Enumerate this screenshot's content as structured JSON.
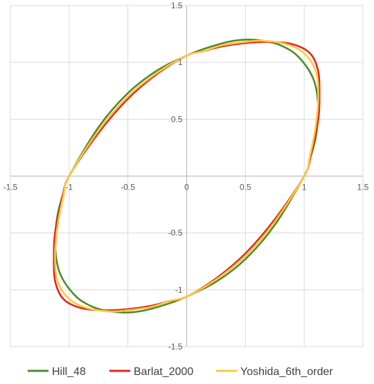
{
  "chart_data": {
    "type": "line",
    "title": "",
    "xlabel": "",
    "ylabel": "",
    "xlim": [
      -1.5,
      1.5
    ],
    "ylim": [
      -1.5,
      1.5
    ],
    "x_ticks": [
      -1.5,
      -1,
      -0.5,
      0,
      0.5,
      1,
      1.5
    ],
    "y_ticks": [
      -1.5,
      -1,
      -0.5,
      0,
      0.5,
      1,
      1.5
    ],
    "x_tick_labels": [
      "-1.5",
      "-1",
      "-0.5",
      "0",
      "0.5",
      "1",
      "1.5"
    ],
    "y_tick_labels": [
      "-1.5",
      "-1",
      "-0.5",
      "0.5",
      "1",
      "1.5"
    ],
    "y_tick_label_values": [
      -1.5,
      -1,
      -0.5,
      0.5,
      1,
      1.5
    ],
    "grid": true,
    "axes_through_origin": true,
    "legend_position": "bottom",
    "series": [
      {
        "name": "Hill_48",
        "color": "#4f8a2b",
        "points": [
          [
            1.0,
            0.0
          ],
          [
            1.05,
            0.15
          ],
          [
            1.1,
            0.35
          ],
          [
            1.12,
            0.6
          ],
          [
            1.08,
            0.85
          ],
          [
            0.95,
            1.05
          ],
          [
            0.8,
            1.15
          ],
          [
            0.65,
            1.19
          ],
          [
            0.5,
            1.2
          ],
          [
            0.35,
            1.18
          ],
          [
            0.15,
            1.12
          ],
          [
            0.0,
            1.06
          ],
          [
            -0.25,
            0.93
          ],
          [
            -0.5,
            0.73
          ],
          [
            -0.75,
            0.43
          ],
          [
            -1.0,
            0.0
          ],
          [
            -1.05,
            -0.15
          ],
          [
            -1.1,
            -0.35
          ],
          [
            -1.12,
            -0.6
          ],
          [
            -1.08,
            -0.85
          ],
          [
            -0.95,
            -1.05
          ],
          [
            -0.8,
            -1.15
          ],
          [
            -0.65,
            -1.19
          ],
          [
            -0.5,
            -1.2
          ],
          [
            -0.35,
            -1.18
          ],
          [
            -0.15,
            -1.12
          ],
          [
            0.0,
            -1.06
          ],
          [
            0.25,
            -0.93
          ],
          [
            0.5,
            -0.73
          ],
          [
            0.75,
            -0.43
          ],
          [
            1.0,
            0.0
          ]
        ]
      },
      {
        "name": "Barlat_2000",
        "color": "#e8231c",
        "points": [
          [
            1.0,
            0.0
          ],
          [
            1.06,
            0.2
          ],
          [
            1.12,
            0.5
          ],
          [
            1.13,
            0.7
          ],
          [
            1.12,
            0.92
          ],
          [
            1.05,
            1.08
          ],
          [
            0.9,
            1.16
          ],
          [
            0.7,
            1.18
          ],
          [
            0.5,
            1.17
          ],
          [
            0.3,
            1.14
          ],
          [
            0.15,
            1.1
          ],
          [
            0.0,
            1.06
          ],
          [
            -0.25,
            0.9
          ],
          [
            -0.5,
            0.68
          ],
          [
            -0.75,
            0.38
          ],
          [
            -1.0,
            0.0
          ],
          [
            -1.06,
            -0.2
          ],
          [
            -1.12,
            -0.5
          ],
          [
            -1.13,
            -0.7
          ],
          [
            -1.12,
            -0.92
          ],
          [
            -1.05,
            -1.08
          ],
          [
            -0.9,
            -1.16
          ],
          [
            -0.7,
            -1.18
          ],
          [
            -0.5,
            -1.17
          ],
          [
            -0.3,
            -1.14
          ],
          [
            -0.15,
            -1.1
          ],
          [
            0.0,
            -1.06
          ],
          [
            0.25,
            -0.9
          ],
          [
            0.5,
            -0.68
          ],
          [
            0.75,
            -0.38
          ],
          [
            1.0,
            0.0
          ]
        ]
      },
      {
        "name": "Yoshida_6th_order",
        "color": "#ffc83d",
        "points": [
          [
            1.0,
            0.0
          ],
          [
            1.05,
            0.18
          ],
          [
            1.1,
            0.45
          ],
          [
            1.12,
            0.7
          ],
          [
            1.1,
            0.92
          ],
          [
            1.0,
            1.08
          ],
          [
            0.85,
            1.16
          ],
          [
            0.65,
            1.19
          ],
          [
            0.5,
            1.18
          ],
          [
            0.3,
            1.15
          ],
          [
            0.15,
            1.1
          ],
          [
            0.0,
            1.06
          ],
          [
            -0.25,
            0.91
          ],
          [
            -0.5,
            0.7
          ],
          [
            -0.75,
            0.4
          ],
          [
            -1.0,
            0.0
          ],
          [
            -1.05,
            -0.18
          ],
          [
            -1.1,
            -0.45
          ],
          [
            -1.12,
            -0.7
          ],
          [
            -1.1,
            -0.92
          ],
          [
            -1.0,
            -1.08
          ],
          [
            -0.85,
            -1.16
          ],
          [
            -0.65,
            -1.19
          ],
          [
            -0.5,
            -1.18
          ],
          [
            -0.3,
            -1.15
          ],
          [
            -0.15,
            -1.1
          ],
          [
            0.0,
            -1.06
          ],
          [
            0.25,
            -0.91
          ],
          [
            0.5,
            -0.7
          ],
          [
            0.75,
            -0.4
          ],
          [
            1.0,
            0.0
          ]
        ]
      }
    ]
  }
}
